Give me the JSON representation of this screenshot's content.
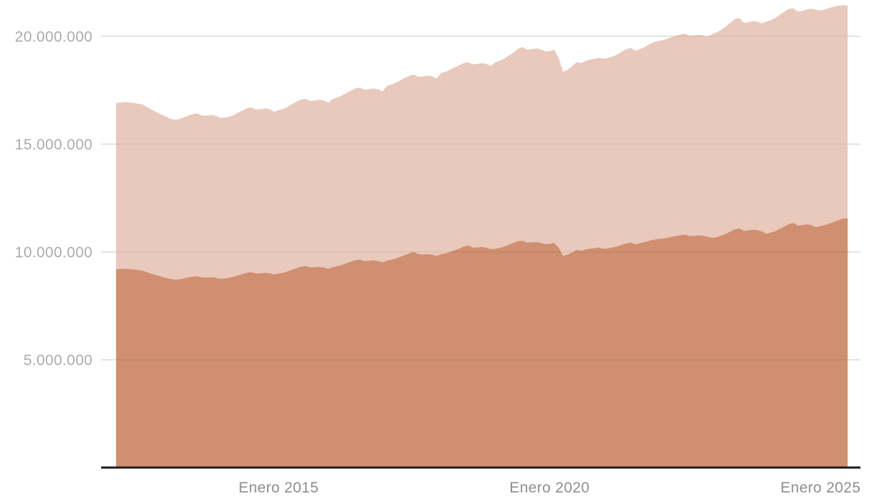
{
  "page": {
    "background_color": "#ffffff"
  },
  "chart_data": {
    "type": "area",
    "stacked": true,
    "title": "",
    "xlabel": "",
    "ylabel": "",
    "legend": "none",
    "grid": "horizontal",
    "grid_color": "#e2e2e2",
    "axis_line_color": "#1a1a1a",
    "y_tick_label_color": "#ababab",
    "x_tick_label_color": "#8d8d8d",
    "x_interval": "monthly",
    "x_start": "2012-01",
    "x_end": "2025-07",
    "ylim": [
      0,
      21680000
    ],
    "unit_multiplier": 1000000,
    "y_ticks": [
      {
        "value": 5000000,
        "label": "5.000.000"
      },
      {
        "value": 10000000,
        "label": "10.000.000"
      },
      {
        "value": 15000000,
        "label": "15.000.000"
      },
      {
        "value": 20000000,
        "label": "20.000.000"
      }
    ],
    "x_tick_labels": [
      {
        "label": "Enero 2015",
        "month_index": 36
      },
      {
        "label": "Enero 2020",
        "month_index": 96
      },
      {
        "label": "Enero 2025",
        "month_index": 156
      }
    ],
    "series": [
      {
        "name": "lower-band-dark",
        "color": "#ba6033",
        "fill_opacity": 0.7,
        "values_millions": [
          9.2,
          9.21,
          9.22,
          9.2,
          9.18,
          9.16,
          9.13,
          9.05,
          8.98,
          8.92,
          8.86,
          8.8,
          8.75,
          8.72,
          8.73,
          8.77,
          8.82,
          8.86,
          8.87,
          8.82,
          8.81,
          8.83,
          8.81,
          8.76,
          8.78,
          8.8,
          8.85,
          8.92,
          8.98,
          9.04,
          9.06,
          9.0,
          9.01,
          9.03,
          9.01,
          8.95,
          9.0,
          9.04,
          9.1,
          9.18,
          9.25,
          9.32,
          9.35,
          9.28,
          9.29,
          9.31,
          9.28,
          9.22,
          9.3,
          9.34,
          9.4,
          9.48,
          9.55,
          9.62,
          9.65,
          9.58,
          9.59,
          9.61,
          9.58,
          9.52,
          9.6,
          9.64,
          9.7,
          9.78,
          9.86,
          9.95,
          10.0,
          9.9,
          9.88,
          9.9,
          9.87,
          9.81,
          9.9,
          9.94,
          10.0,
          10.08,
          10.16,
          10.25,
          10.3,
          10.2,
          10.21,
          10.23,
          10.2,
          10.14,
          10.15,
          10.19,
          10.25,
          10.34,
          10.42,
          10.5,
          10.52,
          10.44,
          10.45,
          10.46,
          10.43,
          10.37,
          10.38,
          10.42,
          10.2,
          9.82,
          9.88,
          9.98,
          10.1,
          10.06,
          10.12,
          10.15,
          10.17,
          10.2,
          10.15,
          10.17,
          10.21,
          10.26,
          10.33,
          10.4,
          10.44,
          10.36,
          10.4,
          10.46,
          10.52,
          10.57,
          10.6,
          10.62,
          10.65,
          10.7,
          10.74,
          10.78,
          10.8,
          10.74,
          10.75,
          10.77,
          10.75,
          10.71,
          10.65,
          10.69,
          10.76,
          10.84,
          10.95,
          11.05,
          11.1,
          10.98,
          11.0,
          11.03,
          11.01,
          10.96,
          10.85,
          10.9,
          10.97,
          11.08,
          11.18,
          11.3,
          11.35,
          11.22,
          11.25,
          11.28,
          11.25,
          11.15,
          11.2,
          11.25,
          11.32,
          11.4,
          11.48,
          11.55,
          11.55
        ]
      },
      {
        "name": "upper-band-light",
        "color": "#e0b29f",
        "fill_opacity": 0.7,
        "values_millions": [
          7.7,
          7.72,
          7.73,
          7.73,
          7.72,
          7.71,
          7.7,
          7.65,
          7.6,
          7.56,
          7.52,
          7.48,
          7.43,
          7.41,
          7.43,
          7.47,
          7.5,
          7.54,
          7.55,
          7.51,
          7.51,
          7.52,
          7.51,
          7.46,
          7.44,
          7.46,
          7.49,
          7.54,
          7.58,
          7.62,
          7.64,
          7.6,
          7.61,
          7.63,
          7.61,
          7.55,
          7.57,
          7.59,
          7.63,
          7.68,
          7.72,
          7.75,
          7.75,
          7.72,
          7.73,
          7.75,
          7.74,
          7.7,
          7.8,
          7.82,
          7.85,
          7.89,
          7.93,
          7.96,
          7.97,
          7.94,
          7.95,
          7.97,
          7.96,
          7.92,
          8.1,
          8.12,
          8.15,
          8.19,
          8.22,
          8.23,
          8.22,
          8.22,
          8.26,
          8.28,
          8.27,
          8.23,
          8.4,
          8.42,
          8.45,
          8.48,
          8.5,
          8.51,
          8.5,
          8.5,
          8.51,
          8.53,
          8.52,
          8.48,
          8.65,
          8.68,
          8.72,
          8.76,
          8.83,
          8.92,
          8.98,
          8.94,
          8.95,
          8.98,
          8.97,
          8.93,
          8.92,
          8.96,
          8.8,
          8.53,
          8.57,
          8.64,
          8.7,
          8.7,
          8.74,
          8.77,
          8.79,
          8.8,
          8.81,
          8.83,
          8.86,
          8.9,
          8.95,
          9.0,
          9.02,
          8.97,
          9.0,
          9.04,
          9.1,
          9.15,
          9.18,
          9.2,
          9.23,
          9.26,
          9.29,
          9.31,
          9.32,
          9.28,
          9.29,
          9.3,
          9.29,
          9.27,
          9.45,
          9.49,
          9.54,
          9.61,
          9.67,
          9.75,
          9.75,
          9.64,
          9.65,
          9.67,
          9.67,
          9.64,
          9.83,
          9.85,
          9.88,
          9.92,
          9.97,
          9.98,
          9.95,
          9.93,
          9.93,
          9.97,
          10.03,
          10.07,
          10.0,
          10.0,
          10.0,
          9.98,
          9.94,
          9.9,
          9.87
        ]
      }
    ]
  }
}
